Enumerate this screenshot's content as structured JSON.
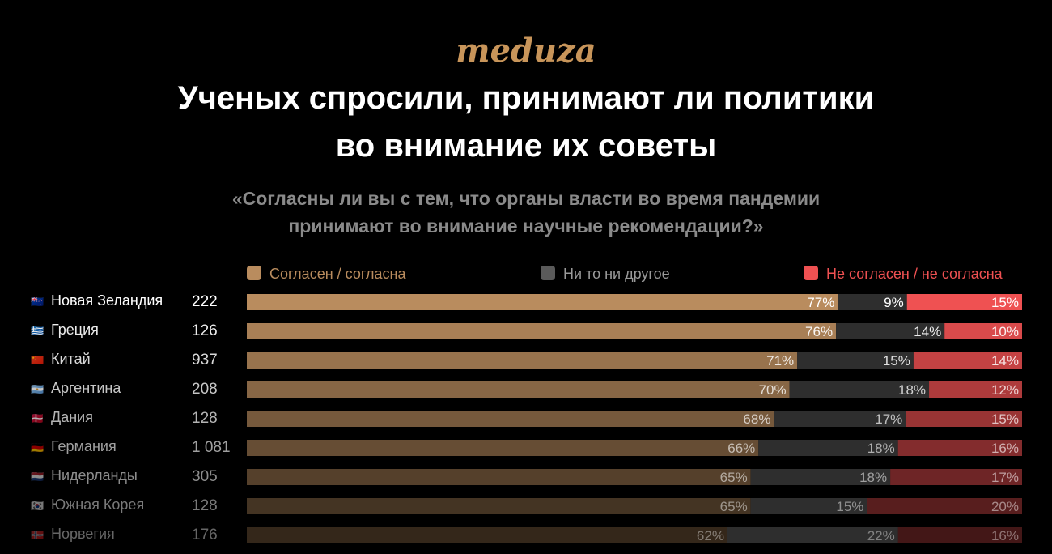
{
  "brand": "meduza",
  "title_lines": [
    "Ученых спросили, принимают ли политики",
    "во внимание их советы"
  ],
  "subtitle_lines": [
    "«Согласны ли вы с тем, что органы власти во время пандемии",
    "принимают во внимание научные рекомендации?»"
  ],
  "colors": {
    "agree": "#b98c5e",
    "neutral": "#2e2e2e",
    "disagree": "#ef5152",
    "background": "#000000",
    "brand": "#c8955a"
  },
  "chart_data": {
    "type": "bar",
    "stacked": true,
    "orientation": "horizontal",
    "normalized_to_100": true,
    "legend_position": "top",
    "categories": [
      "Новая Зеландия",
      "Греция",
      "Китай",
      "Аргентина",
      "Дания",
      "Германия",
      "Нидерланды",
      "Южная Корея",
      "Норвегия"
    ],
    "flags": [
      "🇳🇿",
      "🇬🇷",
      "🇨🇳",
      "🇦🇷",
      "🇩🇰",
      "🇩🇪",
      "🇳🇱",
      "🇰🇷",
      "🇳🇴"
    ],
    "respondents": [
      "222",
      "126",
      "937",
      "208",
      "128",
      "1 081",
      "305",
      "128",
      "176"
    ],
    "series": [
      {
        "name": "Согласен / согласна",
        "values": [
          77,
          76,
          71,
          70,
          68,
          66,
          65,
          65,
          62
        ]
      },
      {
        "name": "Ни то ни другое",
        "values": [
          9,
          14,
          15,
          18,
          17,
          18,
          18,
          15,
          22
        ]
      },
      {
        "name": "Не согласен / не согласна",
        "values": [
          15,
          10,
          14,
          12,
          15,
          16,
          17,
          20,
          16
        ]
      }
    ],
    "value_suffix": "%"
  }
}
